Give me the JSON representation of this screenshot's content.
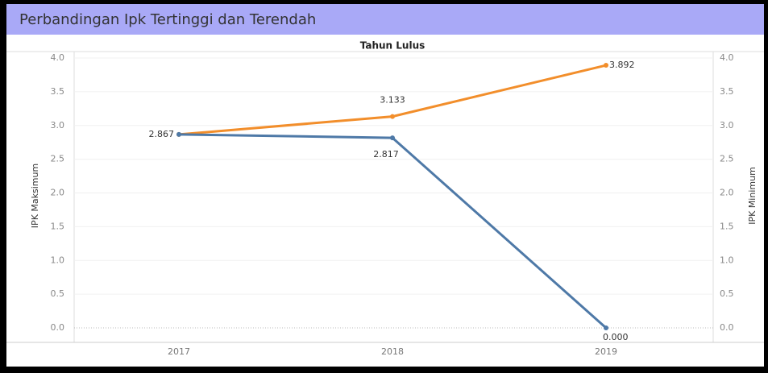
{
  "title": "Perbandingan Ipk Tertinggi dan  Terendah",
  "chart_data": {
    "type": "line",
    "header": "Tahun Lulus",
    "categories": [
      "2017",
      "2018",
      "2019"
    ],
    "ylabel": "IPK Maksimum",
    "y2label": "IPK Minimum",
    "series": [
      {
        "color": "#f28e2b",
        "values": [
          2.867,
          3.133,
          3.892
        ],
        "value_labels": [
          null,
          "3.133",
          "3.892"
        ]
      },
      {
        "color": "#4e79a7",
        "axis": "y2",
        "values": [
          2.867,
          2.817,
          0
        ],
        "value_labels": [
          "2.867",
          "2.817",
          "0.000"
        ]
      }
    ],
    "ylim": [
      0,
      4
    ],
    "y2lim": [
      0,
      4
    ],
    "yticks": [
      {
        "value": 0,
        "label": "0.0"
      },
      0.5,
      {
        "value": 1,
        "label": "1.0"
      },
      1.5,
      {
        "value": 2,
        "label": "2.0"
      },
      2.5,
      {
        "value": 3,
        "label": "3.0"
      },
      3.5,
      {
        "value": 4,
        "label": "4.0"
      }
    ],
    "y2ticks": [
      {
        "value": 0,
        "label": "0.0"
      },
      0.5,
      {
        "value": 1,
        "label": "1.0"
      },
      1.5,
      {
        "value": 2,
        "label": "2.0"
      },
      2.5,
      {
        "value": 3,
        "label": "3.0"
      },
      3.5,
      {
        "value": 4,
        "label": "4.0"
      }
    ],
    "grid": true
  }
}
